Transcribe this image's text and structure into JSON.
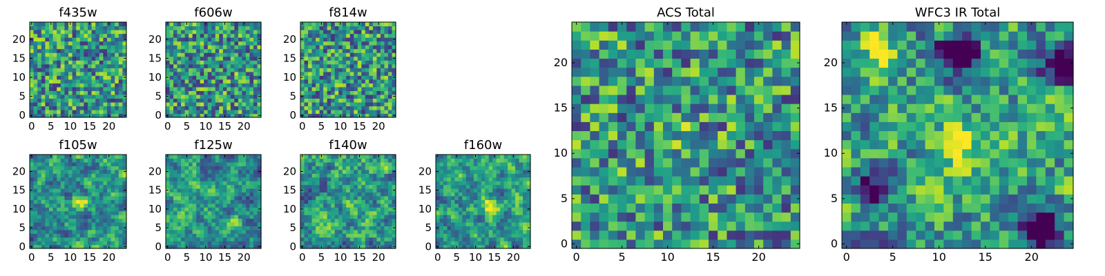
{
  "chart_data": [
    {
      "title": "f435w",
      "type": "heatmap",
      "xlim": [
        0,
        24
      ],
      "ylim": [
        0,
        24
      ],
      "xticks": [
        "0",
        "5",
        "10",
        "15",
        "20"
      ],
      "yticks": [
        "0",
        "5",
        "10",
        "15",
        "20"
      ],
      "seed": 11,
      "smooth": 0,
      "features": []
    },
    {
      "title": "f606w",
      "type": "heatmap",
      "xlim": [
        0,
        24
      ],
      "ylim": [
        0,
        24
      ],
      "xticks": [
        "0",
        "5",
        "10",
        "15",
        "20"
      ],
      "yticks": [
        "0",
        "5",
        "10",
        "15",
        "20"
      ],
      "seed": 23,
      "smooth": 0,
      "features": []
    },
    {
      "title": "f814w",
      "type": "heatmap",
      "xlim": [
        0,
        24
      ],
      "ylim": [
        0,
        24
      ],
      "xticks": [
        "0",
        "5",
        "10",
        "15",
        "20"
      ],
      "yticks": [
        "0",
        "5",
        "10",
        "15",
        "20"
      ],
      "seed": 37,
      "smooth": 0,
      "features": []
    },
    {
      "title": "f105w",
      "type": "heatmap",
      "xlim": [
        0,
        24
      ],
      "ylim": [
        0,
        24
      ],
      "xticks": [
        "0",
        "5",
        "10",
        "15",
        "20"
      ],
      "yticks": [
        "0",
        "5",
        "10",
        "15",
        "20"
      ],
      "seed": 41,
      "smooth": 2,
      "features": [
        {
          "x": 13,
          "y": 12,
          "v": 0.45
        }
      ]
    },
    {
      "title": "f125w",
      "type": "heatmap",
      "xlim": [
        0,
        24
      ],
      "ylim": [
        0,
        24
      ],
      "xticks": [
        "0",
        "5",
        "10",
        "15",
        "20"
      ],
      "yticks": [
        "0",
        "5",
        "10",
        "15",
        "20"
      ],
      "seed": 53,
      "smooth": 2,
      "features": []
    },
    {
      "title": "f140w",
      "type": "heatmap",
      "xlim": [
        0,
        24
      ],
      "ylim": [
        0,
        24
      ],
      "xticks": [
        "0",
        "5",
        "10",
        "15",
        "20"
      ],
      "yticks": [
        "0",
        "5",
        "10",
        "15",
        "20"
      ],
      "seed": 67,
      "smooth": 2,
      "features": []
    },
    {
      "title": "f160w",
      "type": "heatmap",
      "xlim": [
        0,
        24
      ],
      "ylim": [
        0,
        24
      ],
      "xticks": [
        "0",
        "5",
        "10",
        "15",
        "20"
      ],
      "yticks": [
        "0",
        "5",
        "10",
        "15",
        "20"
      ],
      "seed": 79,
      "smooth": 2,
      "features": [
        {
          "x": 14,
          "y": 11,
          "v": 0.5
        }
      ]
    },
    {
      "title": "ACS Total",
      "type": "heatmap",
      "xlim": [
        0,
        24
      ],
      "ylim": [
        0,
        24
      ],
      "xticks": [
        "0",
        "5",
        "10",
        "15",
        "20"
      ],
      "yticks": [
        "0",
        "5",
        "10",
        "15",
        "20"
      ],
      "seed": 83,
      "smooth": 0,
      "features": [
        {
          "x": 12,
          "y": 11,
          "v": 0.25
        }
      ]
    },
    {
      "title": "WFC3 IR Total",
      "type": "heatmap",
      "xlim": [
        0,
        24
      ],
      "ylim": [
        0,
        24
      ],
      "xticks": [
        "0",
        "5",
        "10",
        "15",
        "20"
      ],
      "yticks": [
        "0",
        "5",
        "10",
        "15",
        "20"
      ],
      "seed": 97,
      "smooth": 1,
      "features": [
        {
          "x": 12,
          "y": 11,
          "v": 0.6
        },
        {
          "x": 4,
          "y": 21,
          "v": 0.4
        },
        {
          "x": 12,
          "y": 21,
          "v": -0.9
        },
        {
          "x": 23,
          "y": 20,
          "v": -0.9
        },
        {
          "x": 3,
          "y": 6,
          "v": -0.7
        },
        {
          "x": 21,
          "y": 2,
          "v": -0.9
        }
      ]
    }
  ]
}
